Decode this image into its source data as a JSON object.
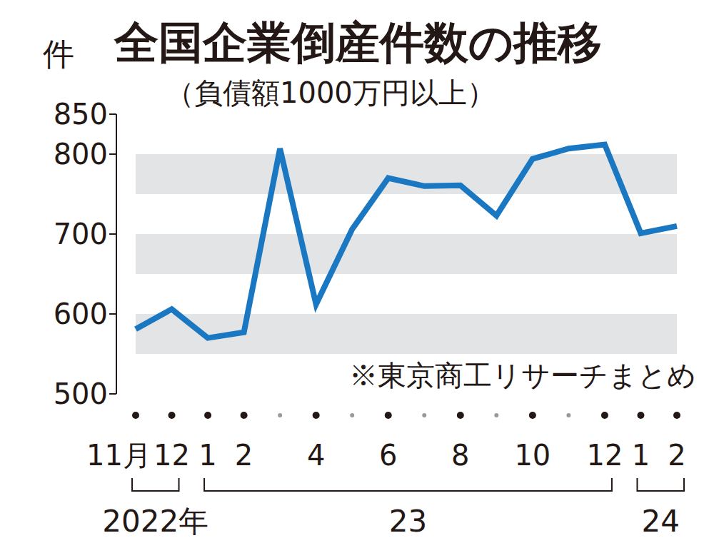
{
  "chart_data": {
    "type": "line",
    "title": "全国企業倒産件数の推移",
    "subtitle": "（負債額1000万円以上）",
    "ylabel": "件",
    "note": "※東京商工リサーチまとめ",
    "categories": [
      "11月",
      "12",
      "1",
      "2",
      null,
      "4",
      null,
      "6",
      null,
      "8",
      null,
      "10",
      null,
      "12",
      "1",
      "2"
    ],
    "year_groups": [
      {
        "label": "2022年",
        "start": 0,
        "end": 1
      },
      {
        "label": "23",
        "start": 2,
        "end": 13
      },
      {
        "label": "24",
        "start": 14,
        "end": 15
      }
    ],
    "values": [
      581,
      606,
      570,
      577,
      807,
      612,
      706,
      770,
      760,
      761,
      723,
      794,
      807,
      812,
      701,
      710
    ],
    "color": "#1a78c2",
    "ylim": [
      500,
      850
    ],
    "yticks": [
      500,
      600,
      700,
      800,
      850
    ],
    "grid": true
  }
}
